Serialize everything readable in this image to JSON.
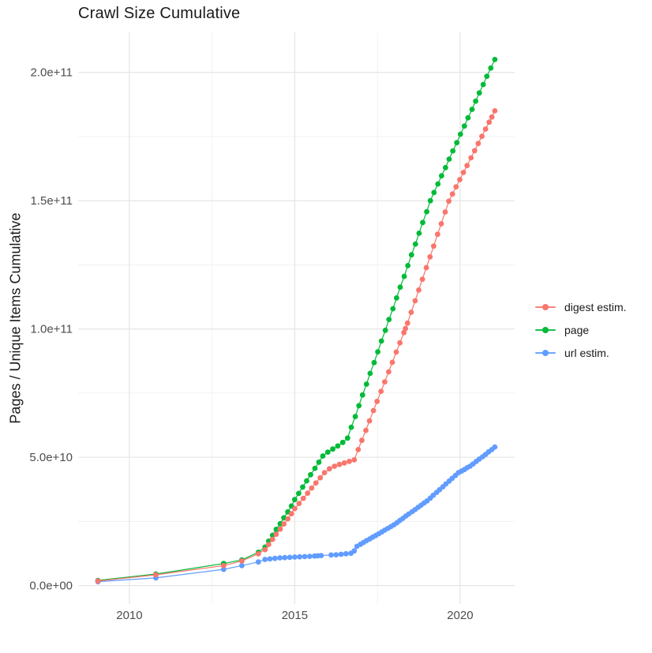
{
  "title": "Crawl Size Cumulative",
  "y_axis": {
    "title": "Pages / Unique Items Cumulative"
  },
  "legend": {
    "position": "right",
    "items": [
      {
        "label": "digest estim.",
        "color": "#F8766D"
      },
      {
        "label": "page",
        "color": "#00BA38"
      },
      {
        "label": "url estim.",
        "color": "#619CFF"
      }
    ]
  },
  "chart_data": {
    "type": "scatter-line",
    "title": "Crawl Size Cumulative",
    "xlabel": "",
    "ylabel": "Pages / Unique Items Cumulative",
    "value_unit": 1000000000.0,
    "xlim": [
      2008.45,
      2021.65
    ],
    "ylim": [
      -7.2,
      215.6
    ],
    "grid": true,
    "x_major_ticks": [
      {
        "value": 2010,
        "label": "2010"
      },
      {
        "value": 2015,
        "label": "2015"
      },
      {
        "value": 2020,
        "label": "2020"
      }
    ],
    "x_minor_ticks": [
      2012.5,
      2017.5
    ],
    "y_major_ticks": [
      {
        "value": 0,
        "label": "0.0e+00"
      },
      {
        "value": 50,
        "label": "5.0e+10"
      },
      {
        "value": 100,
        "label": "1.0e+11"
      },
      {
        "value": 150,
        "label": "1.5e+11"
      },
      {
        "value": 200,
        "label": "2.0e+11"
      }
    ],
    "y_minor_ticks": [
      25,
      75,
      125,
      175
    ],
    "draw_order": [
      "url estim.",
      "page",
      "digest estim."
    ],
    "series": [
      {
        "name": "url estim.",
        "color": "#619CFF",
        "points": [
          [
            2009.05,
            1.5
          ],
          [
            2010.8,
            3.0
          ],
          [
            2012.85,
            6.3
          ],
          [
            2013.4,
            7.8
          ],
          [
            2013.9,
            9.2
          ],
          [
            2014.1,
            10.2
          ],
          [
            2014.25,
            10.4
          ],
          [
            2014.4,
            10.6
          ],
          [
            2014.55,
            10.8
          ],
          [
            2014.7,
            10.9
          ],
          [
            2014.85,
            11.0
          ],
          [
            2015.0,
            11.1
          ],
          [
            2015.15,
            11.2
          ],
          [
            2015.3,
            11.3
          ],
          [
            2015.45,
            11.4
          ],
          [
            2015.6,
            11.5
          ],
          [
            2015.7,
            11.6
          ],
          [
            2015.8,
            11.7
          ],
          [
            2016.1,
            11.9
          ],
          [
            2016.25,
            12.0
          ],
          [
            2016.4,
            12.2
          ],
          [
            2016.55,
            12.4
          ],
          [
            2016.7,
            12.6
          ],
          [
            2016.8,
            13.5
          ],
          [
            2016.88,
            15.3
          ],
          [
            2016.99,
            16.1
          ],
          [
            2017.08,
            16.8
          ],
          [
            2017.17,
            17.5
          ],
          [
            2017.27,
            18.2
          ],
          [
            2017.36,
            18.9
          ],
          [
            2017.45,
            19.5
          ],
          [
            2017.54,
            20.2
          ],
          [
            2017.63,
            20.9
          ],
          [
            2017.72,
            21.6
          ],
          [
            2017.82,
            22.3
          ],
          [
            2017.91,
            23.0
          ],
          [
            2018.0,
            23.7
          ],
          [
            2018.09,
            24.5
          ],
          [
            2018.18,
            25.4
          ],
          [
            2018.27,
            26.2
          ],
          [
            2018.36,
            27.1
          ],
          [
            2018.45,
            27.9
          ],
          [
            2018.55,
            28.8
          ],
          [
            2018.64,
            29.6
          ],
          [
            2018.73,
            30.5
          ],
          [
            2018.82,
            31.3
          ],
          [
            2018.91,
            32.2
          ],
          [
            2019.0,
            33.0
          ],
          [
            2019.1,
            34.1
          ],
          [
            2019.19,
            35.2
          ],
          [
            2019.29,
            36.3
          ],
          [
            2019.38,
            37.4
          ],
          [
            2019.48,
            38.5
          ],
          [
            2019.57,
            39.6
          ],
          [
            2019.67,
            40.7
          ],
          [
            2019.76,
            41.8
          ],
          [
            2019.86,
            42.9
          ],
          [
            2019.95,
            44.0
          ],
          [
            2020.04,
            44.6
          ],
          [
            2020.13,
            45.2
          ],
          [
            2020.21,
            45.9
          ],
          [
            2020.3,
            46.5
          ],
          [
            2020.39,
            47.4
          ],
          [
            2020.49,
            48.4
          ],
          [
            2020.58,
            49.3
          ],
          [
            2020.68,
            50.2
          ],
          [
            2020.77,
            51.1
          ],
          [
            2020.86,
            52.1
          ],
          [
            2020.96,
            53.0
          ],
          [
            2021.05,
            54.0
          ]
        ]
      },
      {
        "name": "page",
        "color": "#00BA38",
        "points": [
          [
            2009.05,
            2.0
          ],
          [
            2010.8,
            4.5
          ],
          [
            2012.85,
            8.6
          ],
          [
            2013.4,
            10.0
          ],
          [
            2013.9,
            13.0
          ],
          [
            2014.1,
            15.0
          ],
          [
            2014.21,
            17.3
          ],
          [
            2014.33,
            19.6
          ],
          [
            2014.44,
            21.9
          ],
          [
            2014.56,
            24.1
          ],
          [
            2014.67,
            26.4
          ],
          [
            2014.79,
            28.7
          ],
          [
            2014.9,
            31.0
          ],
          [
            2015.0,
            33.5
          ],
          [
            2015.12,
            35.9
          ],
          [
            2015.24,
            38.4
          ],
          [
            2015.36,
            40.8
          ],
          [
            2015.48,
            43.2
          ],
          [
            2015.61,
            45.7
          ],
          [
            2015.73,
            48.1
          ],
          [
            2015.85,
            50.5
          ],
          [
            2016.0,
            52.0
          ],
          [
            2016.15,
            53.2
          ],
          [
            2016.3,
            54.4
          ],
          [
            2016.45,
            55.8
          ],
          [
            2016.6,
            57.5
          ],
          [
            2016.71,
            61.7
          ],
          [
            2016.83,
            65.9
          ],
          [
            2016.94,
            70.1
          ],
          [
            2017.05,
            74.3
          ],
          [
            2017.17,
            78.5
          ],
          [
            2017.28,
            82.7
          ],
          [
            2017.4,
            86.9
          ],
          [
            2017.51,
            91.1
          ],
          [
            2017.62,
            95.3
          ],
          [
            2017.74,
            99.5
          ],
          [
            2017.85,
            103.7
          ],
          [
            2017.97,
            107.9
          ],
          [
            2018.08,
            112.1
          ],
          [
            2018.19,
            116.3
          ],
          [
            2018.31,
            120.5
          ],
          [
            2018.42,
            124.7
          ],
          [
            2018.53,
            128.9
          ],
          [
            2018.65,
            133.1
          ],
          [
            2018.76,
            137.3
          ],
          [
            2018.87,
            141.5
          ],
          [
            2018.99,
            145.7
          ],
          [
            2019.1,
            150.0
          ],
          [
            2019.21,
            153.2
          ],
          [
            2019.33,
            156.5
          ],
          [
            2019.44,
            159.7
          ],
          [
            2019.56,
            162.9
          ],
          [
            2019.67,
            166.2
          ],
          [
            2019.78,
            169.4
          ],
          [
            2019.9,
            172.6
          ],
          [
            2020.01,
            175.9
          ],
          [
            2020.13,
            179.1
          ],
          [
            2020.24,
            182.3
          ],
          [
            2020.36,
            185.6
          ],
          [
            2020.47,
            188.8
          ],
          [
            2020.58,
            192.0
          ],
          [
            2020.7,
            195.3
          ],
          [
            2020.81,
            198.5
          ],
          [
            2020.93,
            201.7
          ],
          [
            2021.05,
            205.0
          ]
        ]
      },
      {
        "name": "digest estim.",
        "color": "#F8766D",
        "points": [
          [
            2009.05,
            1.8
          ],
          [
            2010.8,
            4.2
          ],
          [
            2012.85,
            7.8
          ],
          [
            2013.4,
            9.6
          ],
          [
            2013.9,
            12.4
          ],
          [
            2014.1,
            14.0
          ],
          [
            2014.21,
            16.0
          ],
          [
            2014.33,
            18.0
          ],
          [
            2014.44,
            20.0
          ],
          [
            2014.56,
            22.0
          ],
          [
            2014.67,
            24.0
          ],
          [
            2014.79,
            26.0
          ],
          [
            2014.9,
            28.0
          ],
          [
            2015.0,
            30.0
          ],
          [
            2015.13,
            32.0
          ],
          [
            2015.26,
            34.0
          ],
          [
            2015.39,
            36.0
          ],
          [
            2015.51,
            38.0
          ],
          [
            2015.64,
            40.0
          ],
          [
            2015.77,
            42.0
          ],
          [
            2015.9,
            44.0
          ],
          [
            2016.05,
            45.5
          ],
          [
            2016.2,
            46.5
          ],
          [
            2016.35,
            47.2
          ],
          [
            2016.5,
            47.8
          ],
          [
            2016.65,
            48.4
          ],
          [
            2016.8,
            49.0
          ],
          [
            2016.92,
            53.0
          ],
          [
            2017.03,
            56.6
          ],
          [
            2017.15,
            60.5
          ],
          [
            2017.26,
            64.2
          ],
          [
            2017.38,
            68.2
          ],
          [
            2017.49,
            71.8
          ],
          [
            2017.61,
            75.7
          ],
          [
            2017.72,
            79.4
          ],
          [
            2017.84,
            83.3
          ],
          [
            2017.95,
            87.0
          ],
          [
            2018.07,
            91.0
          ],
          [
            2018.18,
            94.6
          ],
          [
            2018.3,
            98.6
          ],
          [
            2018.35,
            100.2
          ],
          [
            2018.41,
            102.3
          ],
          [
            2018.52,
            106.5
          ],
          [
            2018.64,
            111.0
          ],
          [
            2018.75,
            115.2
          ],
          [
            2018.86,
            119.4
          ],
          [
            2018.98,
            123.9
          ],
          [
            2019.09,
            128.1
          ],
          [
            2019.2,
            132.3
          ],
          [
            2019.32,
            136.9
          ],
          [
            2019.43,
            141.0
          ],
          [
            2019.55,
            145.6
          ],
          [
            2019.66,
            149.8
          ],
          [
            2019.77,
            152.6
          ],
          [
            2019.88,
            155.4
          ],
          [
            2019.99,
            158.2
          ],
          [
            2020.1,
            161.0
          ],
          [
            2020.21,
            163.7
          ],
          [
            2020.33,
            166.7
          ],
          [
            2020.44,
            169.5
          ],
          [
            2020.55,
            172.3
          ],
          [
            2020.66,
            175.1
          ],
          [
            2020.77,
            177.9
          ],
          [
            2020.88,
            180.6
          ],
          [
            2020.96,
            182.6
          ],
          [
            2021.05,
            185.0
          ]
        ]
      }
    ],
    "style": {
      "point_radius": 3.4,
      "line_width": 1.2,
      "grid_major_color": "#E3E3E3",
      "grid_minor_color": "#F0F0F0",
      "tick_label_color": "#4D4D4D",
      "background": "#ffffff"
    }
  }
}
